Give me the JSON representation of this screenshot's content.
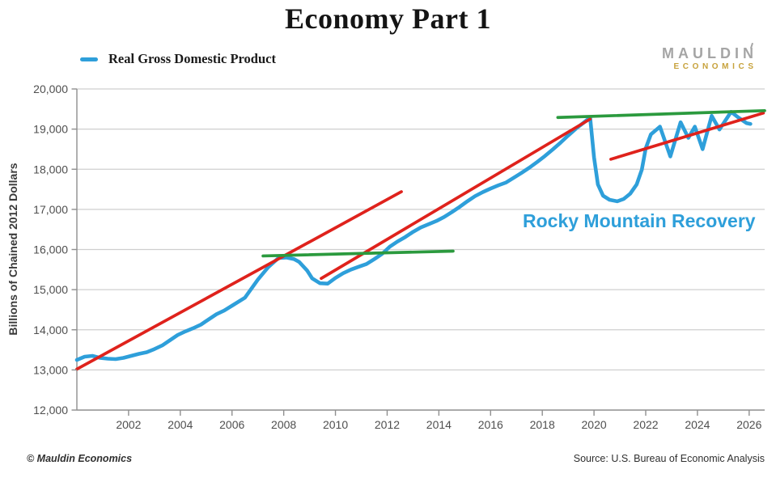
{
  "title": "Economy Part 1",
  "legend": {
    "label": "Real Gross Domestic Product",
    "swatch_color": "#2E9FDA"
  },
  "logo": {
    "line1": "MAULDIN",
    "line2": "ECONOMICS",
    "line1_color": "#A5A5A5",
    "line2_color": "#C7A23C"
  },
  "footer": {
    "left": "© Mauldin Economics",
    "right": "Source: U.S. Bureau of Economic Analysis"
  },
  "colors": {
    "gdp_line": "#2E9FDA",
    "trend_red": "#DF221C",
    "resistance_green": "#2B9A3E",
    "gridline": "#CFCFCF",
    "axis": "#8F8F8F",
    "tick_label": "#4f4f4f"
  },
  "chart_data": {
    "type": "line",
    "title": "Economy Part 1",
    "xlabel": "",
    "ylabel": "Billions of Chained 2012 Dollars",
    "xlim": [
      2000,
      2026.6
    ],
    "ylim": [
      12000,
      20000
    ],
    "x_ticks": [
      2002,
      2004,
      2006,
      2008,
      2010,
      2012,
      2014,
      2016,
      2018,
      2020,
      2022,
      2024,
      2026
    ],
    "y_ticks": [
      12000,
      13000,
      14000,
      15000,
      16000,
      17000,
      18000,
      19000,
      20000
    ],
    "grid": "horizontal-only",
    "legend_position": "top-left",
    "series": [
      {
        "name": "Real Gross Domestic Product",
        "color": "#2E9FDA",
        "points": [
          [
            2000.0,
            13250
          ],
          [
            2000.3,
            13330
          ],
          [
            2000.6,
            13350
          ],
          [
            2000.9,
            13300
          ],
          [
            2001.2,
            13280
          ],
          [
            2001.5,
            13270
          ],
          [
            2001.8,
            13300
          ],
          [
            2002.1,
            13350
          ],
          [
            2002.4,
            13400
          ],
          [
            2002.7,
            13440
          ],
          [
            2003.0,
            13520
          ],
          [
            2003.3,
            13610
          ],
          [
            2003.6,
            13740
          ],
          [
            2003.9,
            13870
          ],
          [
            2004.2,
            13960
          ],
          [
            2004.5,
            14040
          ],
          [
            2004.8,
            14130
          ],
          [
            2005.1,
            14260
          ],
          [
            2005.4,
            14390
          ],
          [
            2005.7,
            14480
          ],
          [
            2006.0,
            14600
          ],
          [
            2006.5,
            14800
          ],
          [
            2007.0,
            15250
          ],
          [
            2007.4,
            15560
          ],
          [
            2007.8,
            15790
          ],
          [
            2008.1,
            15800
          ],
          [
            2008.4,
            15760
          ],
          [
            2008.6,
            15690
          ],
          [
            2008.9,
            15480
          ],
          [
            2009.1,
            15280
          ],
          [
            2009.4,
            15160
          ],
          [
            2009.7,
            15150
          ],
          [
            2010.0,
            15290
          ],
          [
            2010.3,
            15410
          ],
          [
            2010.6,
            15500
          ],
          [
            2010.9,
            15570
          ],
          [
            2011.2,
            15640
          ],
          [
            2011.5,
            15760
          ],
          [
            2011.8,
            15890
          ],
          [
            2012.1,
            16070
          ],
          [
            2012.4,
            16200
          ],
          [
            2012.7,
            16310
          ],
          [
            2013.0,
            16440
          ],
          [
            2013.3,
            16550
          ],
          [
            2013.6,
            16630
          ],
          [
            2013.9,
            16710
          ],
          [
            2014.2,
            16810
          ],
          [
            2014.5,
            16930
          ],
          [
            2014.8,
            17060
          ],
          [
            2015.1,
            17200
          ],
          [
            2015.4,
            17330
          ],
          [
            2015.7,
            17430
          ],
          [
            2016.0,
            17520
          ],
          [
            2016.3,
            17600
          ],
          [
            2016.6,
            17670
          ],
          [
            2016.9,
            17790
          ],
          [
            2017.2,
            17910
          ],
          [
            2017.5,
            18040
          ],
          [
            2017.8,
            18180
          ],
          [
            2018.1,
            18330
          ],
          [
            2018.4,
            18490
          ],
          [
            2018.7,
            18660
          ],
          [
            2019.0,
            18840
          ],
          [
            2019.3,
            19010
          ],
          [
            2019.6,
            19160
          ],
          [
            2019.85,
            19290
          ],
          [
            2020.0,
            18300
          ],
          [
            2020.15,
            17620
          ],
          [
            2020.35,
            17340
          ],
          [
            2020.6,
            17240
          ],
          [
            2020.9,
            17200
          ],
          [
            2021.15,
            17260
          ],
          [
            2021.4,
            17390
          ],
          [
            2021.65,
            17620
          ],
          [
            2021.85,
            17990
          ],
          [
            2022.0,
            18520
          ],
          [
            2022.2,
            18870
          ],
          [
            2022.55,
            19060
          ],
          [
            2022.95,
            18320
          ],
          [
            2023.35,
            19170
          ],
          [
            2023.65,
            18780
          ],
          [
            2023.9,
            19060
          ],
          [
            2024.2,
            18500
          ],
          [
            2024.55,
            19330
          ],
          [
            2024.85,
            18990
          ],
          [
            2025.3,
            19430
          ],
          [
            2025.6,
            19280
          ],
          [
            2025.9,
            19150
          ],
          [
            2026.05,
            19130
          ]
        ]
      }
    ],
    "trend_lines": [
      {
        "id": "trend-red-pre-crisis",
        "color": "#DF221C",
        "from": [
          2000.0,
          13020
        ],
        "to": [
          2012.55,
          17440
        ]
      },
      {
        "id": "trend-red-post-crisis",
        "color": "#DF221C",
        "from": [
          2009.45,
          15280
        ],
        "to": [
          2019.85,
          19250
        ]
      },
      {
        "id": "trend-red-post-covid",
        "color": "#DF221C",
        "from": [
          2020.65,
          18250
        ],
        "to": [
          2026.55,
          19400
        ]
      },
      {
        "id": "resistance-green-2008",
        "color": "#2B9A3E",
        "from": [
          2007.2,
          15840
        ],
        "to": [
          2014.55,
          15960
        ]
      },
      {
        "id": "resistance-green-2020",
        "color": "#2B9A3E",
        "from": [
          2018.6,
          19290
        ],
        "to": [
          2026.6,
          19460
        ]
      }
    ],
    "annotations": [
      {
        "text": "Rocky Mountain Recovery",
        "x": 2021.7,
        "y": 16650,
        "color": "#2E9FDA"
      }
    ]
  }
}
